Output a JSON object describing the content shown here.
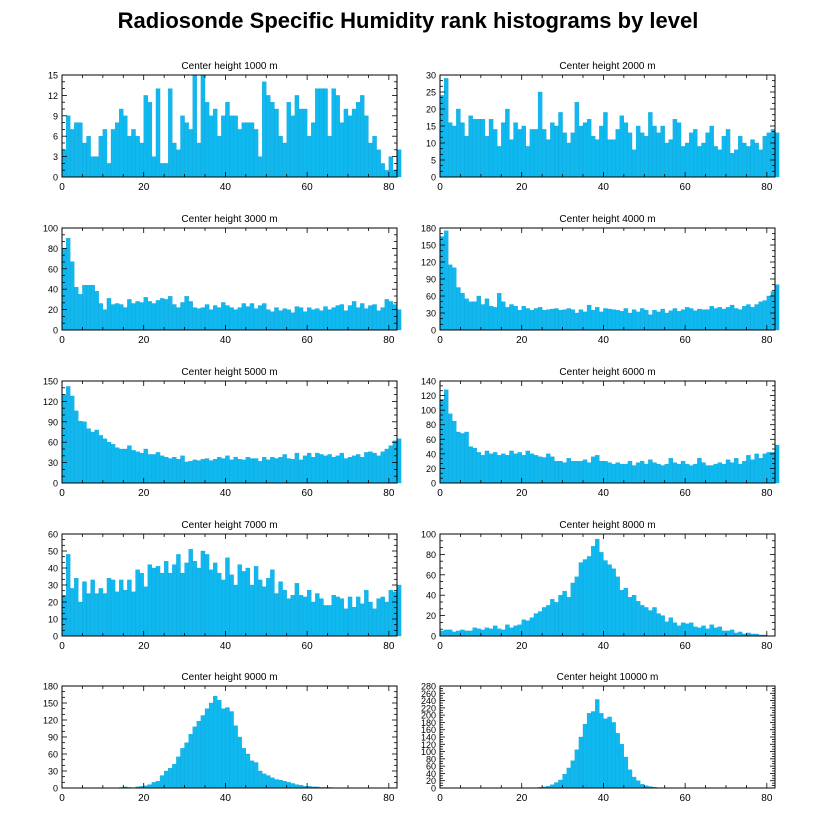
{
  "title": "Radiosonde Specific Humidity rank histograms by level",
  "colors": {
    "bar": "#10b8f0",
    "bar_edge": "#0e9fd1",
    "axis": "#000000"
  },
  "chart_data": [
    {
      "type": "bar",
      "title": "Center height 1000 m",
      "xlim": [
        0,
        82
      ],
      "ylim": [
        0,
        15
      ],
      "xticks": [
        0,
        20,
        40,
        60,
        80
      ],
      "yticks": [
        0,
        3,
        6,
        9,
        12,
        15
      ],
      "values": [
        4,
        9,
        7,
        8,
        8,
        5,
        6,
        3,
        3,
        6,
        7,
        2,
        7,
        8,
        10,
        9,
        6,
        7,
        6,
        5,
        12,
        11,
        3,
        13,
        2,
        2,
        13,
        5,
        4,
        9,
        8,
        7,
        15,
        5,
        15,
        11,
        9,
        10,
        6,
        9,
        11,
        9,
        9,
        7,
        8,
        8,
        8,
        7,
        3,
        14,
        12,
        11,
        10,
        6,
        5,
        11,
        9,
        12,
        10,
        10,
        6,
        8,
        13,
        13,
        13,
        6,
        13,
        12,
        8,
        10,
        9,
        10,
        11,
        12,
        9,
        5,
        6,
        4,
        2,
        1,
        3,
        1,
        4
      ]
    },
    {
      "type": "bar",
      "title": "Center height 2000 m",
      "xlim": [
        0,
        82
      ],
      "ylim": [
        0,
        30
      ],
      "xticks": [
        0,
        20,
        40,
        60,
        80
      ],
      "yticks": [
        0,
        5,
        10,
        15,
        20,
        25,
        30
      ],
      "values": [
        24,
        29,
        16,
        15,
        20,
        16,
        12,
        18,
        17,
        17,
        17,
        12,
        17,
        14,
        9,
        16,
        20,
        11,
        16,
        14,
        15,
        9,
        14,
        14,
        25,
        14,
        11,
        16,
        15,
        19,
        13,
        10,
        13,
        22,
        15,
        16,
        17,
        12,
        11,
        15,
        19,
        11,
        11,
        14,
        18,
        16,
        13,
        8,
        15,
        13,
        12,
        19,
        15,
        13,
        15,
        10,
        11,
        17,
        16,
        9,
        10,
        13,
        14,
        9,
        10,
        13,
        15,
        9,
        8,
        12,
        14,
        7,
        8,
        12,
        10,
        9,
        11,
        10,
        8,
        12,
        13,
        14,
        13
      ]
    },
    {
      "type": "bar",
      "title": "Center height 3000 m",
      "xlim": [
        0,
        82
      ],
      "ylim": [
        0,
        100
      ],
      "xticks": [
        0,
        20,
        40,
        60,
        80
      ],
      "yticks": [
        0,
        20,
        40,
        60,
        80,
        100
      ],
      "values": [
        80,
        90,
        67,
        42,
        35,
        44,
        44,
        44,
        38,
        26,
        20,
        31,
        25,
        26,
        25,
        22,
        30,
        26,
        28,
        27,
        32,
        28,
        26,
        29,
        31,
        30,
        33,
        25,
        22,
        27,
        33,
        28,
        22,
        21,
        22,
        25,
        20,
        24,
        22,
        27,
        24,
        22,
        20,
        22,
        26,
        23,
        26,
        21,
        24,
        26,
        20,
        18,
        22,
        19,
        21,
        20,
        17,
        23,
        22,
        18,
        22,
        20,
        21,
        19,
        23,
        20,
        22,
        24,
        25,
        19,
        24,
        28,
        22,
        26,
        21,
        24,
        25,
        19,
        22,
        30,
        28,
        25,
        20
      ]
    },
    {
      "type": "bar",
      "title": "Center height 4000 m",
      "xlim": [
        0,
        82
      ],
      "ylim": [
        0,
        180
      ],
      "xticks": [
        0,
        20,
        40,
        60,
        80
      ],
      "yticks": [
        0,
        30,
        60,
        90,
        120,
        150,
        180
      ],
      "values": [
        165,
        175,
        115,
        110,
        75,
        65,
        55,
        50,
        50,
        60,
        45,
        55,
        42,
        40,
        65,
        50,
        40,
        45,
        42,
        35,
        42,
        38,
        35,
        38,
        40,
        35,
        36,
        37,
        38,
        35,
        36,
        38,
        36,
        30,
        36,
        32,
        44,
        35,
        40,
        32,
        38,
        37,
        36,
        35,
        33,
        38,
        30,
        36,
        32,
        38,
        35,
        27,
        35,
        32,
        37,
        30,
        34,
        38,
        33,
        36,
        40,
        38,
        34,
        37,
        36,
        36,
        42,
        38,
        40,
        37,
        40,
        44,
        38,
        36,
        42,
        45,
        40,
        45,
        50,
        52,
        60,
        68,
        80
      ]
    },
    {
      "type": "bar",
      "title": "Center height 5000 m",
      "xlim": [
        0,
        82
      ],
      "ylim": [
        0,
        150
      ],
      "xticks": [
        0,
        20,
        40,
        60,
        80
      ],
      "yticks": [
        0,
        30,
        60,
        90,
        120,
        150
      ],
      "values": [
        130,
        142,
        128,
        106,
        91,
        90,
        80,
        75,
        78,
        70,
        65,
        60,
        57,
        52,
        50,
        50,
        55,
        48,
        46,
        44,
        50,
        42,
        42,
        45,
        40,
        38,
        36,
        38,
        35,
        40,
        31,
        32,
        34,
        33,
        35,
        36,
        33,
        35,
        38,
        36,
        40,
        34,
        38,
        35,
        34,
        38,
        36,
        36,
        32,
        38,
        34,
        38,
        36,
        38,
        42,
        36,
        35,
        44,
        34,
        40,
        44,
        38,
        44,
        42,
        40,
        42,
        38,
        40,
        44,
        36,
        38,
        40,
        42,
        38,
        45,
        46,
        44,
        40,
        46,
        50,
        55,
        62,
        65
      ]
    },
    {
      "type": "bar",
      "title": "Center height 6000 m",
      "xlim": [
        0,
        82
      ],
      "ylim": [
        0,
        140
      ],
      "xticks": [
        0,
        20,
        40,
        60,
        80
      ],
      "yticks": [
        0,
        20,
        40,
        60,
        80,
        100,
        120,
        140
      ],
      "values": [
        115,
        128,
        95,
        85,
        70,
        68,
        70,
        50,
        48,
        42,
        38,
        44,
        40,
        42,
        38,
        40,
        38,
        44,
        40,
        42,
        38,
        44,
        40,
        38,
        36,
        35,
        40,
        36,
        30,
        30,
        28,
        34,
        30,
        30,
        30,
        32,
        28,
        36,
        38,
        30,
        30,
        28,
        26,
        28,
        26,
        26,
        30,
        24,
        28,
        30,
        26,
        32,
        28,
        26,
        24,
        26,
        34,
        28,
        26,
        30,
        26,
        24,
        26,
        34,
        28,
        24,
        24,
        26,
        28,
        26,
        32,
        28,
        34,
        26,
        30,
        38,
        32,
        40,
        34,
        40,
        42,
        42,
        52
      ]
    },
    {
      "type": "bar",
      "title": "Center height 7000 m",
      "xlim": [
        0,
        82
      ],
      "ylim": [
        0,
        60
      ],
      "xticks": [
        0,
        20,
        40,
        60,
        80
      ],
      "yticks": [
        0,
        10,
        20,
        30,
        40,
        50,
        60
      ],
      "values": [
        24,
        48,
        28,
        34,
        20,
        32,
        25,
        33,
        25,
        28,
        25,
        34,
        33,
        26,
        33,
        27,
        33,
        26,
        39,
        37,
        29,
        42,
        40,
        41,
        37,
        44,
        37,
        42,
        48,
        37,
        43,
        51,
        44,
        40,
        50,
        48,
        39,
        43,
        37,
        33,
        46,
        36,
        30,
        42,
        38,
        40,
        30,
        41,
        33,
        29,
        34,
        39,
        25,
        32,
        27,
        22,
        24,
        31,
        24,
        23,
        27,
        20,
        25,
        22,
        18,
        18,
        24,
        23,
        22,
        16,
        23,
        17,
        23,
        19,
        27,
        20,
        16,
        22,
        23,
        20,
        27,
        26,
        30
      ]
    },
    {
      "type": "bar",
      "title": "Center height 8000 m",
      "xlim": [
        0,
        82
      ],
      "ylim": [
        0,
        100
      ],
      "xticks": [
        0,
        20,
        40,
        60,
        80
      ],
      "yticks": [
        0,
        20,
        40,
        60,
        80,
        100
      ],
      "values": [
        5,
        6,
        6,
        4,
        5,
        6,
        5,
        5,
        8,
        7,
        6,
        8,
        7,
        10,
        7,
        6,
        11,
        8,
        10,
        11,
        16,
        15,
        18,
        22,
        24,
        28,
        30,
        36,
        33,
        40,
        44,
        38,
        52,
        58,
        72,
        75,
        78,
        88,
        95,
        82,
        74,
        70,
        66,
        58,
        45,
        47,
        38,
        40,
        34,
        30,
        28,
        25,
        28,
        22,
        20,
        14,
        18,
        13,
        10,
        13,
        12,
        13,
        9,
        8,
        10,
        7,
        11,
        8,
        9,
        5,
        5,
        6,
        3,
        4,
        2,
        3,
        2,
        2,
        1,
        1,
        0,
        0,
        0
      ]
    },
    {
      "type": "bar",
      "title": "Center height 9000 m",
      "xlim": [
        0,
        82
      ],
      "ylim": [
        0,
        180
      ],
      "xticks": [
        0,
        20,
        40,
        60,
        80
      ],
      "yticks": [
        0,
        30,
        60,
        90,
        120,
        150,
        180
      ],
      "values": [
        0,
        0,
        0,
        0,
        0,
        0,
        0,
        0,
        0,
        0,
        0,
        0,
        0,
        0,
        1,
        2,
        1,
        0,
        2,
        3,
        4,
        6,
        10,
        12,
        22,
        30,
        35,
        42,
        55,
        70,
        80,
        95,
        108,
        118,
        128,
        140,
        150,
        162,
        155,
        140,
        142,
        135,
        110,
        90,
        70,
        60,
        48,
        45,
        30,
        25,
        22,
        18,
        15,
        14,
        12,
        10,
        8,
        6,
        5,
        3,
        3,
        2,
        2,
        1,
        1,
        1,
        0,
        0,
        0,
        0,
        0,
        0,
        0,
        0,
        0,
        0,
        0,
        0,
        0,
        0,
        0,
        0,
        0
      ]
    },
    {
      "type": "bar",
      "title": "Center height 10000 m",
      "xlim": [
        0,
        82
      ],
      "ylim": [
        0,
        280
      ],
      "xticks": [
        0,
        20,
        40,
        60,
        80
      ],
      "yticks": [
        0,
        20,
        40,
        60,
        80,
        100,
        120,
        140,
        160,
        180,
        200,
        220,
        240,
        260,
        280
      ],
      "values": [
        0,
        0,
        0,
        0,
        0,
        0,
        0,
        0,
        0,
        0,
        0,
        0,
        0,
        0,
        0,
        0,
        0,
        0,
        0,
        0,
        0,
        0,
        0,
        1,
        2,
        3,
        5,
        9,
        15,
        22,
        38,
        55,
        75,
        105,
        140,
        175,
        205,
        210,
        243,
        205,
        190,
        195,
        180,
        150,
        120,
        85,
        50,
        30,
        20,
        10,
        6,
        4,
        2,
        1,
        1,
        0,
        0,
        0,
        0,
        0,
        0,
        0,
        0,
        0,
        0,
        0,
        0,
        0,
        0,
        0,
        0,
        0,
        0,
        0,
        0,
        0,
        0,
        0,
        0,
        0,
        0,
        0,
        0
      ]
    }
  ]
}
